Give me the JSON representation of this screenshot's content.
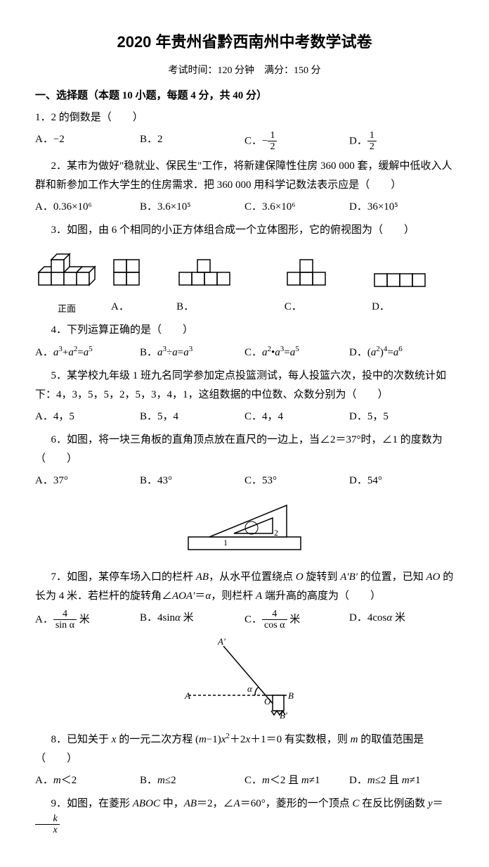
{
  "title": "2020 年贵州省黔西南州中考数学试卷",
  "exam_info": "考试时间：120 分钟　满分：150 分",
  "section1": "一、选择题（本题 10 小题，每题 4 分，共 40 分）",
  "q1": "1．2 的倒数是（　　）",
  "q1A": "A．−2",
  "q1B": "B．2",
  "q1Cpre": "C．−",
  "q1Dpre": "D．",
  "half_num": "1",
  "half_den": "2",
  "q2": "2．某市为做好\"稳就业、保民生\"工作，将新建保障性住房 360 000 套，缓解中低收入人群和新参加工作大学生的住房需求．把 360 000 用科学记数法表示应是（　　）",
  "q2A": "A．0.36×10⁶",
  "q2B": "B．3.6×10⁵",
  "q2C": "C．3.6×10⁶",
  "q2D": "D．36×10⁵",
  "q3": "3．如图，由 6 个相同的小正方体组合成一个立体图形，它的俯视图为（　　）",
  "fig3_front": "正面",
  "q4": "4．下列运算正确的是（　　）",
  "q4A_html": "A．<i>a</i><sup>3</sup>+<i>a</i><sup>2</sup>=<i>a</i><sup>5</sup>",
  "q4B_html": "B．<i>a</i><sup>3</sup>÷<i>a</i>=<i>a</i><sup>3</sup>",
  "q4C_html": "C．<i>a</i><sup>2</sup>•<i>a</i><sup>3</sup>=<i>a</i><sup>5</sup>",
  "q4D_html": "D．(<i>a</i><sup>2</sup>)<sup>4</sup>=<i>a</i><sup>6</sup>",
  "q5": "5．某学校九年级 1 班九名同学参加定点投篮测试，每人投篮六次，投中的次数统计如下：4，3，5，5，2，5，3，4，1，这组数据的中位数、众数分别为（　　）",
  "q5A": "A．4，5",
  "q5B": "B．5，4",
  "q5C": "C．4，4",
  "q5D": "D．5，5",
  "q6": "6．如图，将一块三角板的直角顶点放在直尺的一边上，当∠2＝37°时，∠1 的度数为（　　）",
  "q6A": "A．37°",
  "q6B": "B．43°",
  "q6C": "C．53°",
  "q6D": "D．54°",
  "q7_html": "7．如图，某停车场入口的栏杆 <i>AB</i>，从水平位置绕点 <i>O</i> 旋转到 <i>A'B'</i> 的位置，已知 <i>AO</i> 的长为 4 米．若栏杆的旋转角∠<i>AOA'</i>＝<i>α</i>，则栏杆 <i>A</i> 端升高的高度为（　　）",
  "q7Apre": "A．",
  "q7Anum": "4",
  "q7Aden": "sin α",
  "q7Apost": " 米",
  "q7B_html": "B．4sin<i>α</i> 米",
  "q7Cpre": "C．",
  "q7Cnum": "4",
  "q7Cden": "cos α",
  "q7Cpost": " 米",
  "q7D_html": "D．4cos<i>α</i> 米",
  "fig7_A": "A",
  "fig7_Ap": "A'",
  "fig7_O": "O",
  "fig7_B": "B",
  "fig7_Bp": "B'",
  "fig7_a": "α",
  "q8_html": "8．已知关于 <i>x</i> 的一元二次方程 (<i>m</i>−1)<i>x</i><sup>2</sup>＋2<i>x</i>＋1＝0 有实数根，则 <i>m</i> 的取值范围是（　　）",
  "q8A_html": "A．<i>m</i>＜2",
  "q8B_html": "B．<i>m</i>≤2",
  "q8C_html": "C．<i>m</i>＜2 且 <i>m</i>≠1",
  "q8D_html": "D．<i>m</i>≤2 且 <i>m</i>≠1",
  "q9_html": "9．如图，在菱形 <i>ABOC</i> 中，<i>AB</i>＝2，∠<i>A</i>＝60°，菱形的一个顶点 <i>C</i> 在反比例函数 <i>y</i>＝",
  "q9_num": "k",
  "q9_den": "x",
  "fig6_1": "1",
  "fig6_2": "2",
  "optA": "A．",
  "optB": "B．",
  "optC": "C．",
  "optD": "D．",
  "colors": {
    "text": "#000000",
    "bg": "#ffffff",
    "stroke": "#000000"
  }
}
